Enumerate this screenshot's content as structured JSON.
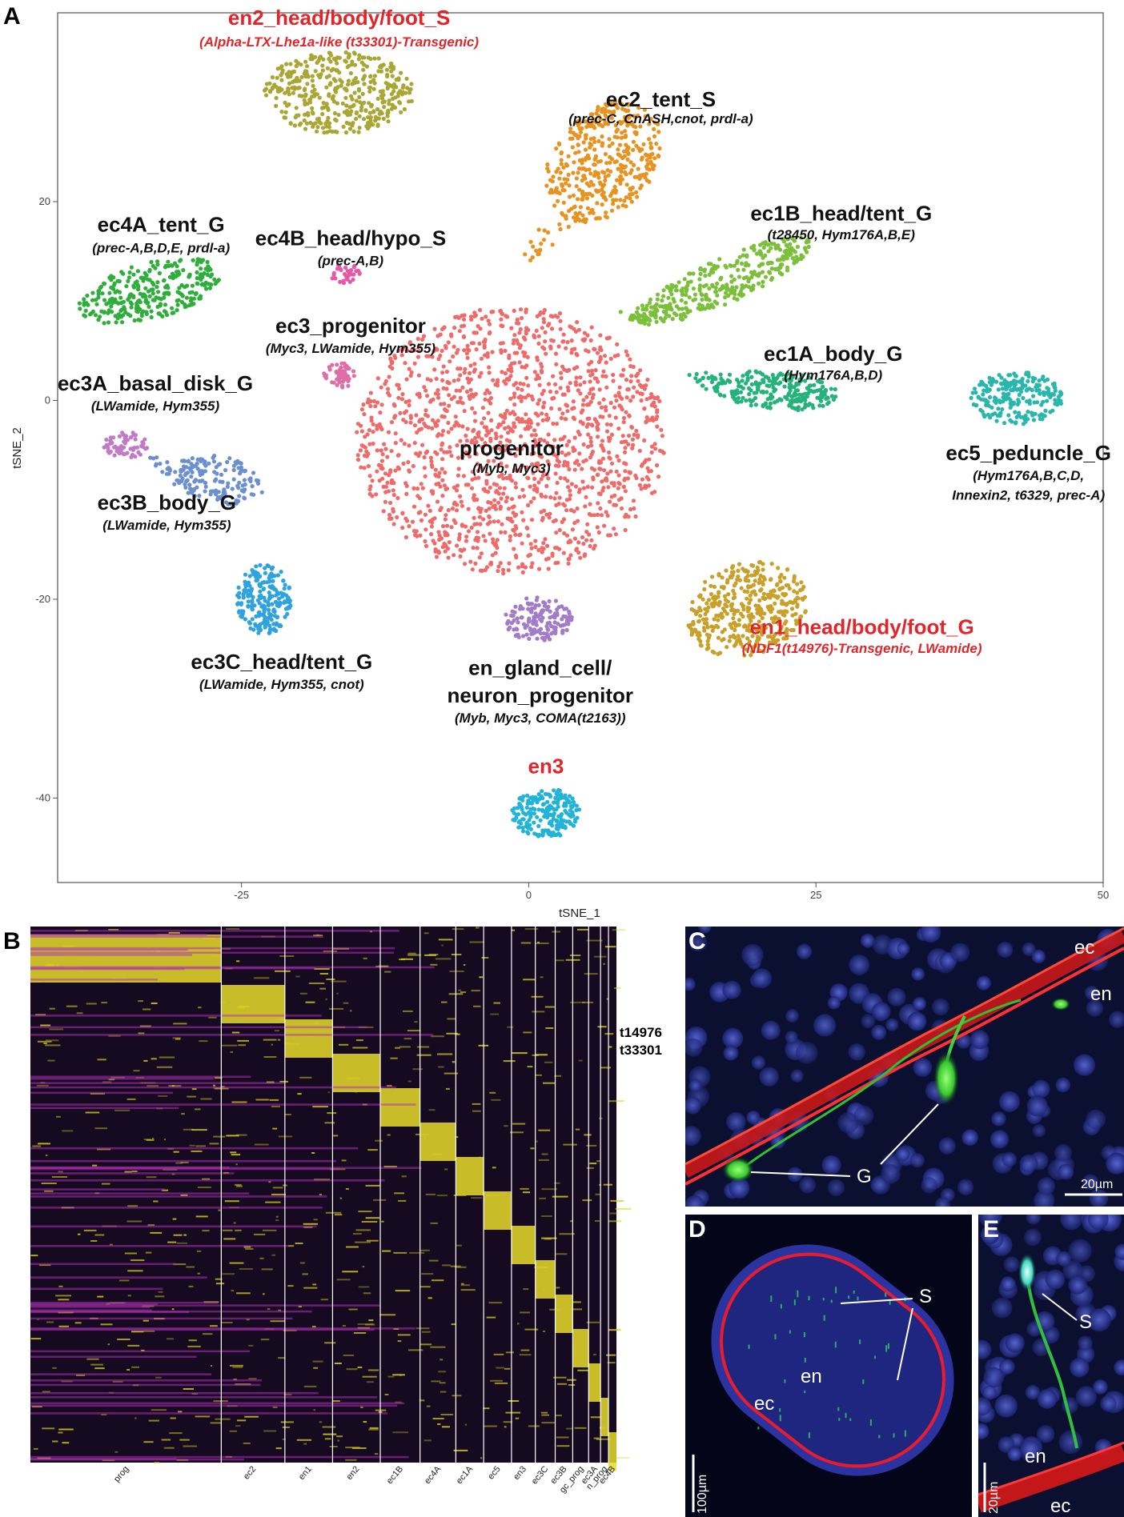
{
  "panel_a": {
    "letter": "A",
    "axes": {
      "xlabel": "tSNE_1",
      "ylabel": "tSNE_2",
      "xticks": [
        "-25",
        "0",
        "25",
        "50"
      ],
      "yticks": [
        "20",
        "0",
        "-20",
        "-40"
      ],
      "xlim": [
        -41,
        50
      ],
      "ylim": [
        -48.5,
        39
      ]
    },
    "clusters": [
      {
        "key": "en2",
        "name": "en2_head/body/foot_S",
        "genes": "(Alpha-LTX-Lhe1a-like (t33301)-Transgenic)",
        "highlight": true,
        "color": "#a9a634"
      },
      {
        "key": "ec2",
        "name": "ec2_tent_S",
        "genes": "(prec-C, CnASH,cnot, prdl-a)",
        "highlight": false,
        "color": "#e8921f"
      },
      {
        "key": "ec4A",
        "name": "ec4A_tent_G",
        "genes": "(prec-A,B,D,E, prdl-a)",
        "highlight": false,
        "color": "#2eae3a"
      },
      {
        "key": "ec4B",
        "name": "ec4B_head/hypo_S",
        "genes": "(prec-A,B)",
        "highlight": false,
        "color": "#e55aa7"
      },
      {
        "key": "ec1B",
        "name": "ec1B_head/tent_G",
        "genes": "(t28450, Hym176A,B,E)",
        "highlight": false,
        "color": "#7bbf3a"
      },
      {
        "key": "ec3",
        "name": "ec3_progenitor",
        "genes": "(Myc3, LWamide, Hym355)",
        "highlight": false,
        "color": "#e06ea6"
      },
      {
        "key": "ec1A",
        "name": "ec1A_body_G",
        "genes": "(Hym176A,B,D)",
        "highlight": false,
        "color": "#25b27c"
      },
      {
        "key": "ec3A",
        "name": "ec3A_basal_disk_G",
        "genes": "(LWamide, Hym355)",
        "highlight": false,
        "color": "#c279c6"
      },
      {
        "key": "prog",
        "name": "progenitor",
        "genes": "(Myb, Myc3)",
        "highlight": false,
        "color": "#ee6b6a"
      },
      {
        "key": "ec5",
        "name": "ec5_peduncle_G",
        "genes": "(Hym176A,B,C,D,",
        "genes2": "Innexin2, t6329, prec-A)",
        "highlight": false,
        "color": "#29b6ad"
      },
      {
        "key": "ec3B",
        "name": "ec3B_body_G",
        "genes": "(LWamide, Hym355)",
        "highlight": false,
        "color": "#6c8fd0"
      },
      {
        "key": "ec3C",
        "name": "ec3C_head/tent_G",
        "genes": "(LWamide, Hym355, cnot)",
        "highlight": false,
        "color": "#2ea3dd"
      },
      {
        "key": "en1",
        "name": "en1_head/body/foot_G",
        "genes": "(NDF1(t14976)-Transgenic, LWamide)",
        "highlight": true,
        "color": "#c8a02a"
      },
      {
        "key": "engc",
        "name": "en_gland_cell/",
        "name2": "neuron_progenitor",
        "genes": "(Myb, Myc3, COMA(t2163))",
        "highlight": false,
        "color": "#a27cc8"
      },
      {
        "key": "en3",
        "name": "en3",
        "genes": "",
        "highlight": true,
        "color": "#22b3d8"
      }
    ],
    "highlight_color": "#e0262a"
  },
  "panel_b": {
    "letter": "B",
    "side_labels": [
      "t14976",
      "t33301"
    ],
    "column_labels": [
      "prog",
      "ec2",
      "en1",
      "en2",
      "ec1B",
      "ec4A",
      "ec1A",
      "ec5",
      "en3",
      "ec3C",
      "ec3B",
      "gc_prog",
      "ec3A",
      "n_prog",
      "ec4B"
    ]
  },
  "panel_c": {
    "letter": "C",
    "labels": [
      "ec",
      "en",
      "G"
    ],
    "scale": "20µm"
  },
  "panel_d": {
    "letter": "D",
    "labels": [
      "S",
      "en",
      "ec"
    ],
    "scale": "100µm"
  },
  "panel_e": {
    "letter": "E",
    "labels": [
      "S",
      "en",
      "ec"
    ],
    "scale": "20µm"
  }
}
